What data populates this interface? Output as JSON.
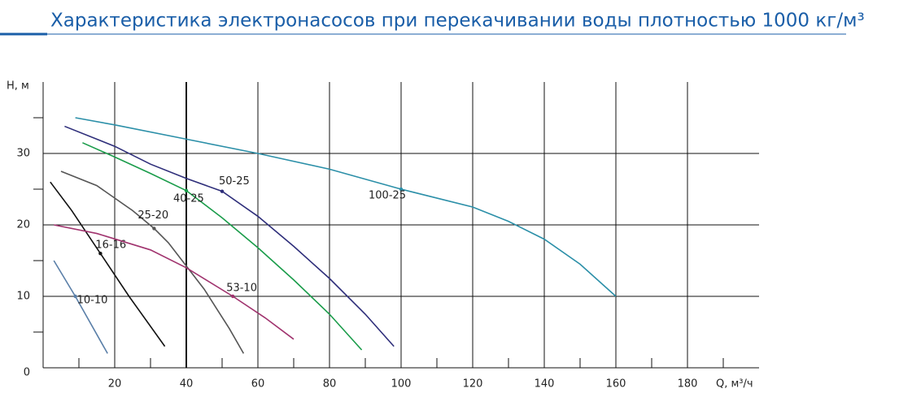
{
  "chart_data": {
    "type": "line",
    "title": "Характеристика электронасосов при перекачивании воды плотностью 1000 кг/м³",
    "x_label": "Q, м³/ч",
    "y_label": "Н, м",
    "xlim": [
      0,
      200
    ],
    "ylim": [
      0,
      40
    ],
    "xticks": [
      20,
      40,
      60,
      80,
      100,
      120,
      140,
      160,
      180
    ],
    "yticks": [
      0,
      10,
      20,
      30
    ],
    "xminorticks": [
      10,
      30,
      50,
      70,
      90,
      110,
      130,
      150,
      170,
      190
    ],
    "yminorticks": [
      5,
      15,
      25,
      35
    ],
    "grid": true,
    "series": [
      {
        "name": "10-10",
        "color": "#5a7fa8",
        "x": [
          3,
          9,
          18
        ],
        "values": [
          15,
          10,
          2
        ],
        "marker_index": 1
      },
      {
        "name": "16-16",
        "color": "#111111",
        "x": [
          2,
          8,
          16,
          24,
          34
        ],
        "values": [
          26,
          22,
          16,
          10,
          3
        ],
        "marker_index": 2
      },
      {
        "name": "25-20",
        "color": "#555555",
        "x": [
          5,
          15,
          25,
          31,
          35,
          45,
          52,
          56
        ],
        "values": [
          27.5,
          25.5,
          22,
          19.5,
          17.5,
          11,
          5.5,
          2
        ],
        "marker_index": 3
      },
      {
        "name": "53-10",
        "color": "#a0336e",
        "x": [
          3,
          15,
          30,
          40,
          53,
          62,
          70
        ],
        "values": [
          20,
          18.8,
          16.5,
          14,
          10,
          7,
          4
        ],
        "marker_index": 4
      },
      {
        "name": "40-25",
        "color": "#1a9c4a",
        "x": [
          11,
          20,
          30,
          40,
          50,
          60,
          70,
          80,
          89
        ],
        "values": [
          31.5,
          29.5,
          27.2,
          24.8,
          21,
          16.8,
          12.3,
          7.5,
          2.5
        ],
        "marker_index": 3
      },
      {
        "name": "50-25",
        "color": "#2e2e7a",
        "x": [
          6,
          20,
          30,
          40,
          50,
          60,
          70,
          80,
          90,
          98
        ],
        "values": [
          33.8,
          31,
          28.5,
          26.5,
          24.7,
          21.2,
          17,
          12.5,
          7.5,
          3
        ],
        "marker_index": 4
      },
      {
        "name": "100-25",
        "color": "#2b8fa8",
        "x": [
          9,
          20,
          40,
          60,
          80,
          100,
          120,
          130,
          140,
          150,
          160
        ],
        "values": [
          35,
          34,
          32,
          30,
          27.8,
          25,
          22.5,
          20.5,
          18,
          14.5,
          10
        ],
        "marker_index": 5
      }
    ]
  }
}
